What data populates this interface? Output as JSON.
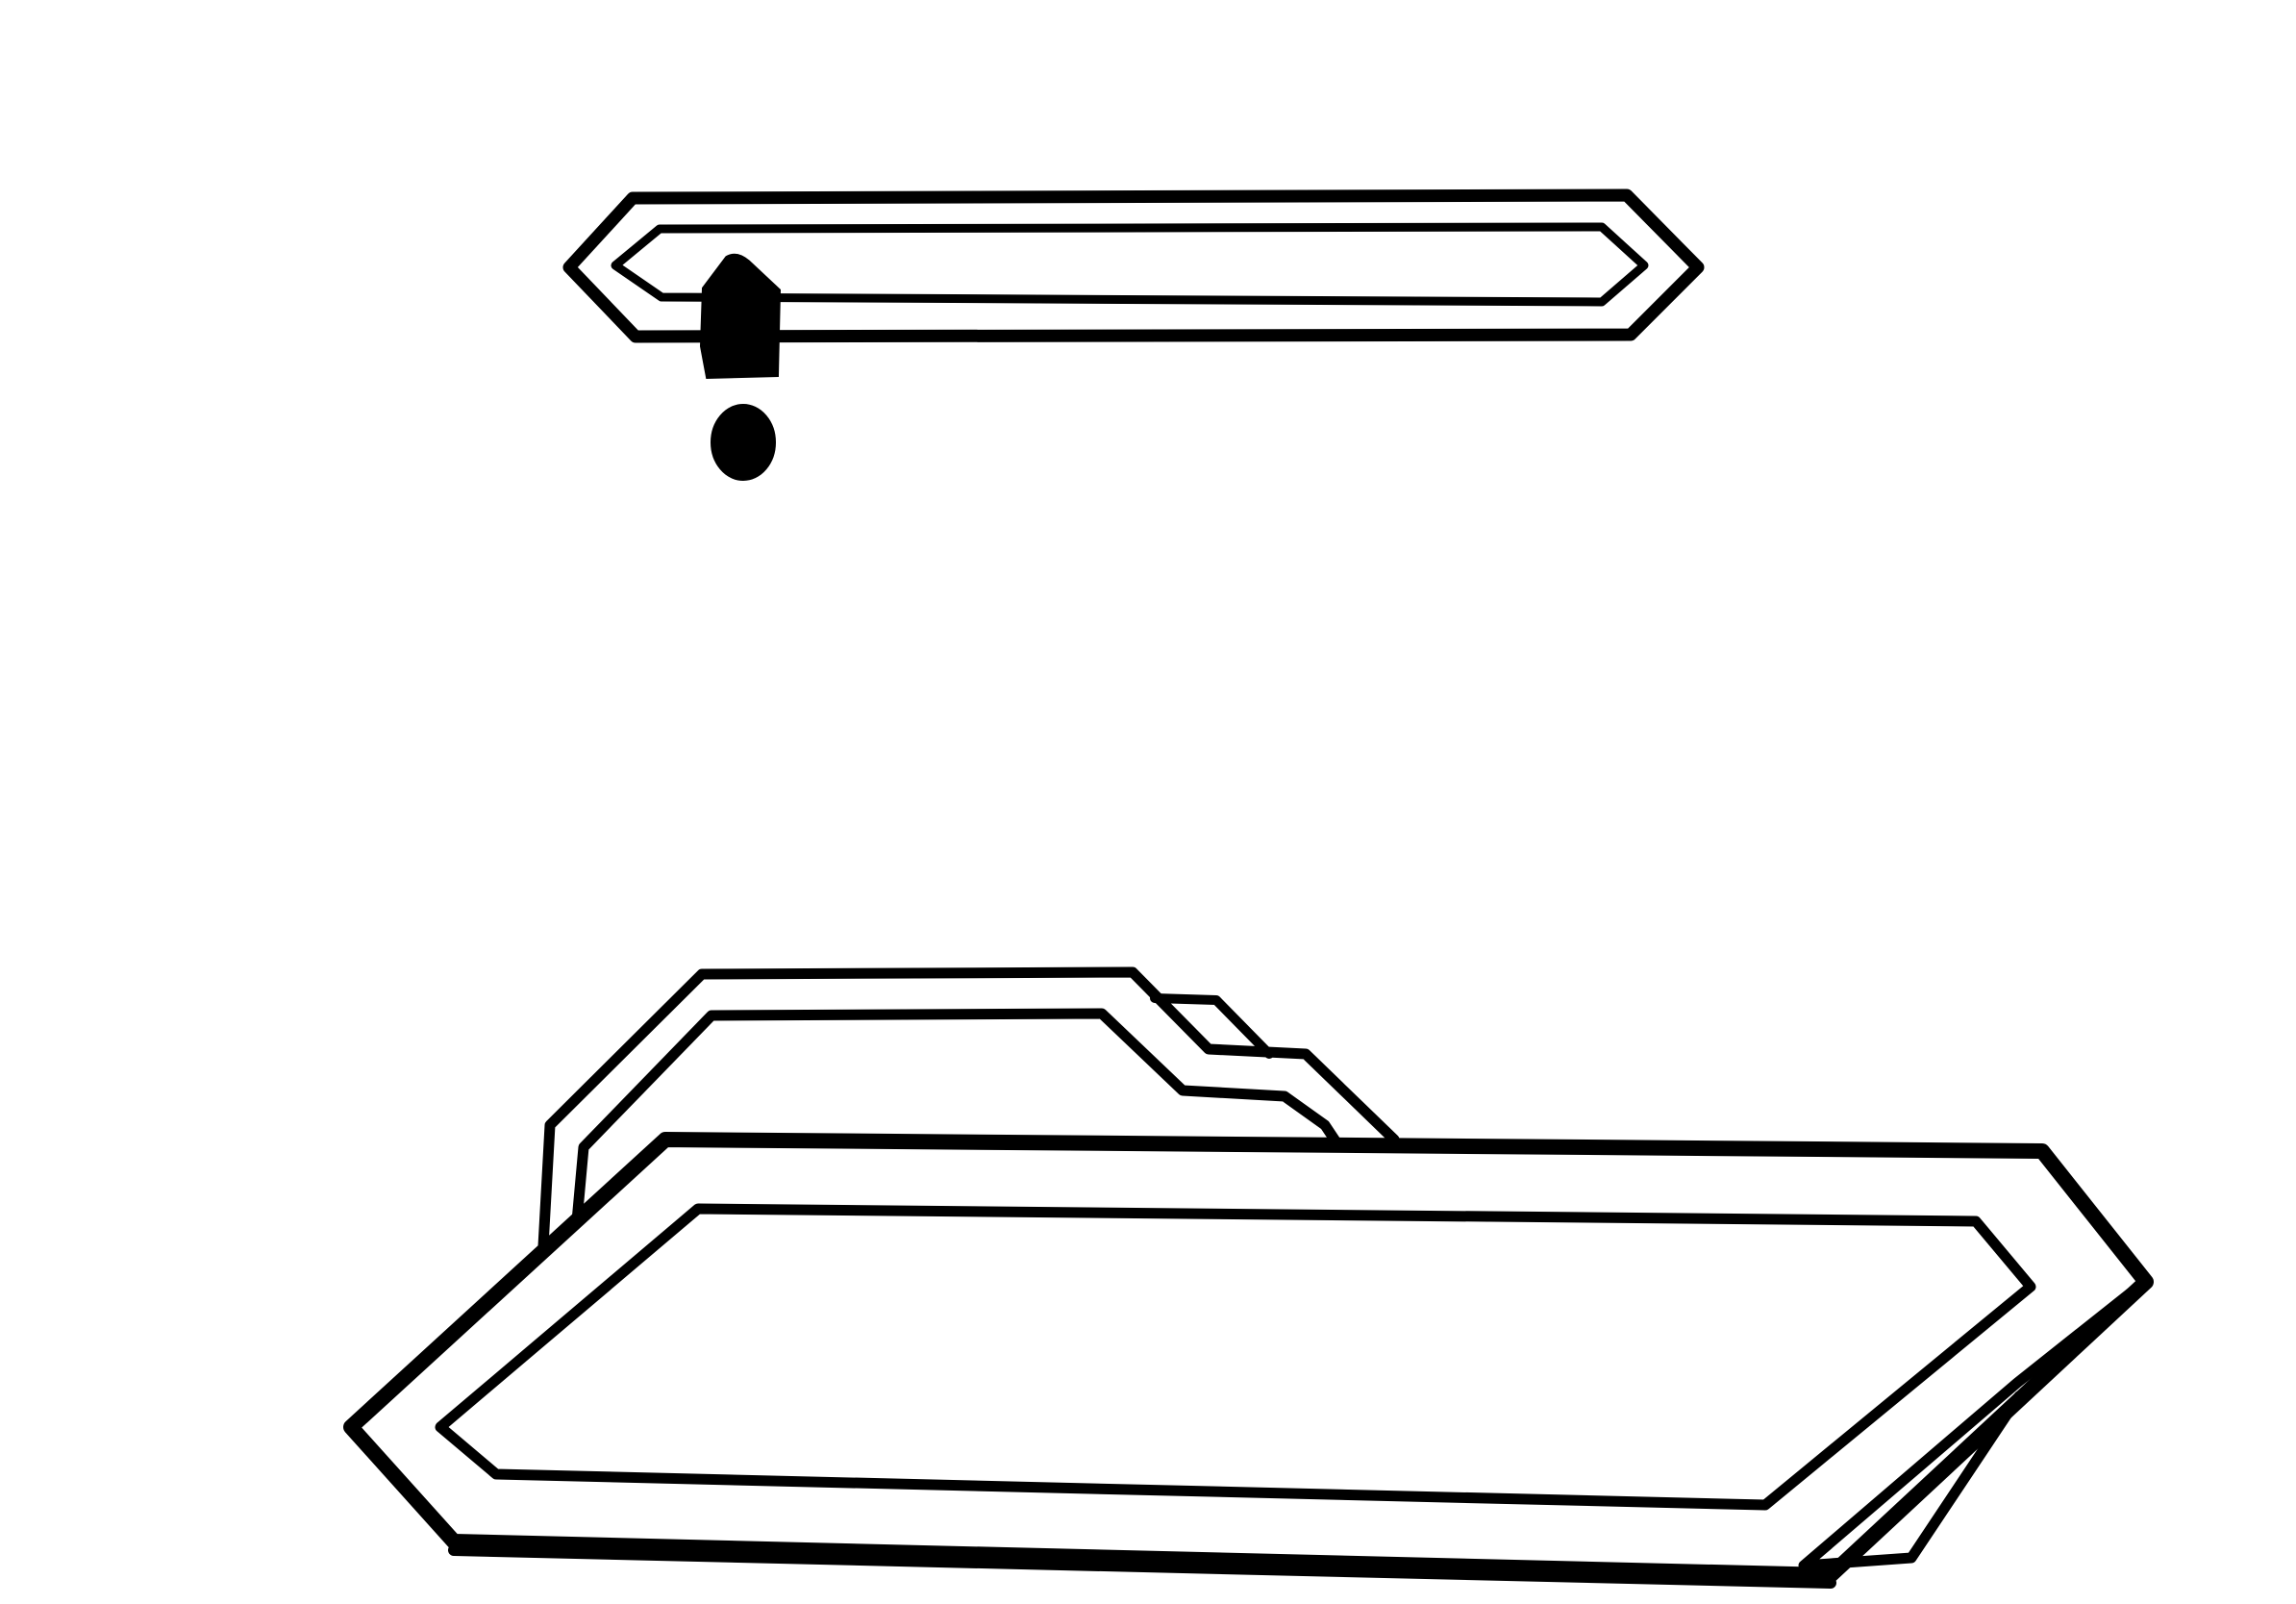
{
  "illustration": {
    "background_color": "#ffffff",
    "ink_color": "#000000",
    "objects": [
      {
        "name": "bar",
        "style": "double outlined elongated hexagon"
      },
      {
        "name": "exclamation-mark",
        "style": "filled black"
      },
      {
        "name": "folder",
        "style": "double outlined open folder with tab"
      }
    ]
  }
}
